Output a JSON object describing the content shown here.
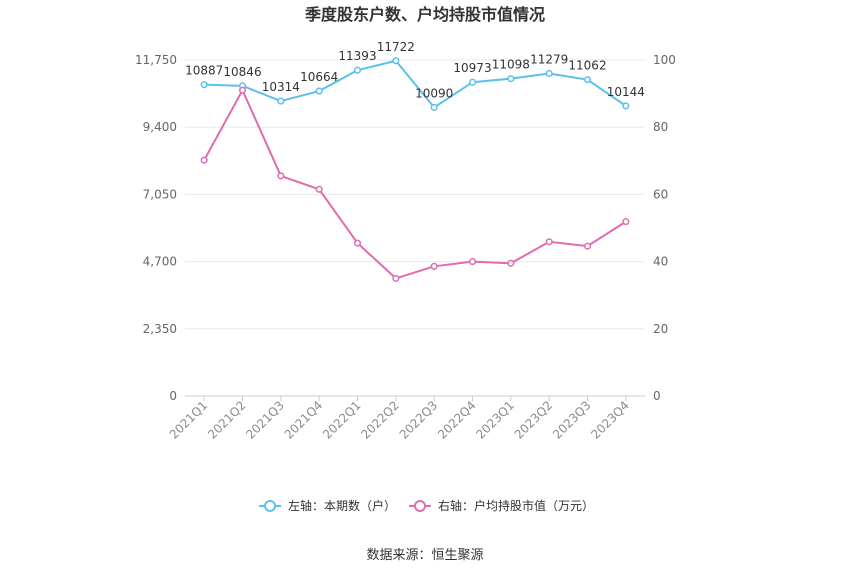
{
  "title": "季度股东户数、户均持股市值情况",
  "source": "数据来源：恒生聚源",
  "legend": [
    {
      "label": "左轴：本期数（户）",
      "color": "#5bc0eb"
    },
    {
      "label": "右轴：户均持股市值（万元）",
      "color": "#e06bb0"
    }
  ],
  "chart_data": {
    "type": "line",
    "categories": [
      "2021Q1",
      "2021Q2",
      "2021Q3",
      "2021Q4",
      "2022Q1",
      "2022Q2",
      "2022Q3",
      "2022Q4",
      "2023Q1",
      "2023Q2",
      "2023Q3",
      "2023Q4"
    ],
    "left_axis": {
      "ticks": [
        "0",
        "2,350",
        "4,700",
        "7,050",
        "9,400",
        "11,750"
      ],
      "ylim": [
        0,
        11750
      ]
    },
    "right_axis": {
      "ticks": [
        "0",
        "20",
        "40",
        "60",
        "80",
        "100"
      ],
      "ylim": [
        0,
        100
      ]
    },
    "grid": true,
    "legend_position": "bottom",
    "series": [
      {
        "name": "左轴：本期数（户）",
        "axis": "left",
        "color": "#5bc0eb",
        "values": [
          10887,
          10846,
          10314,
          10664,
          11393,
          11722,
          10090,
          10973,
          11098,
          11279,
          11062,
          10144
        ],
        "labels": [
          "10887",
          "10846",
          "10314",
          "10664",
          "11393",
          "11722",
          "10090",
          "10973",
          "11098",
          "11279",
          "11062",
          "10144"
        ]
      },
      {
        "name": "右轴：户均持股市值（万元）",
        "axis": "right",
        "color": "#e06bb0",
        "values": [
          70.2,
          91.0,
          65.5,
          61.5,
          45.5,
          35.0,
          38.6,
          40.0,
          39.5,
          45.9,
          44.6,
          51.9
        ]
      }
    ]
  }
}
